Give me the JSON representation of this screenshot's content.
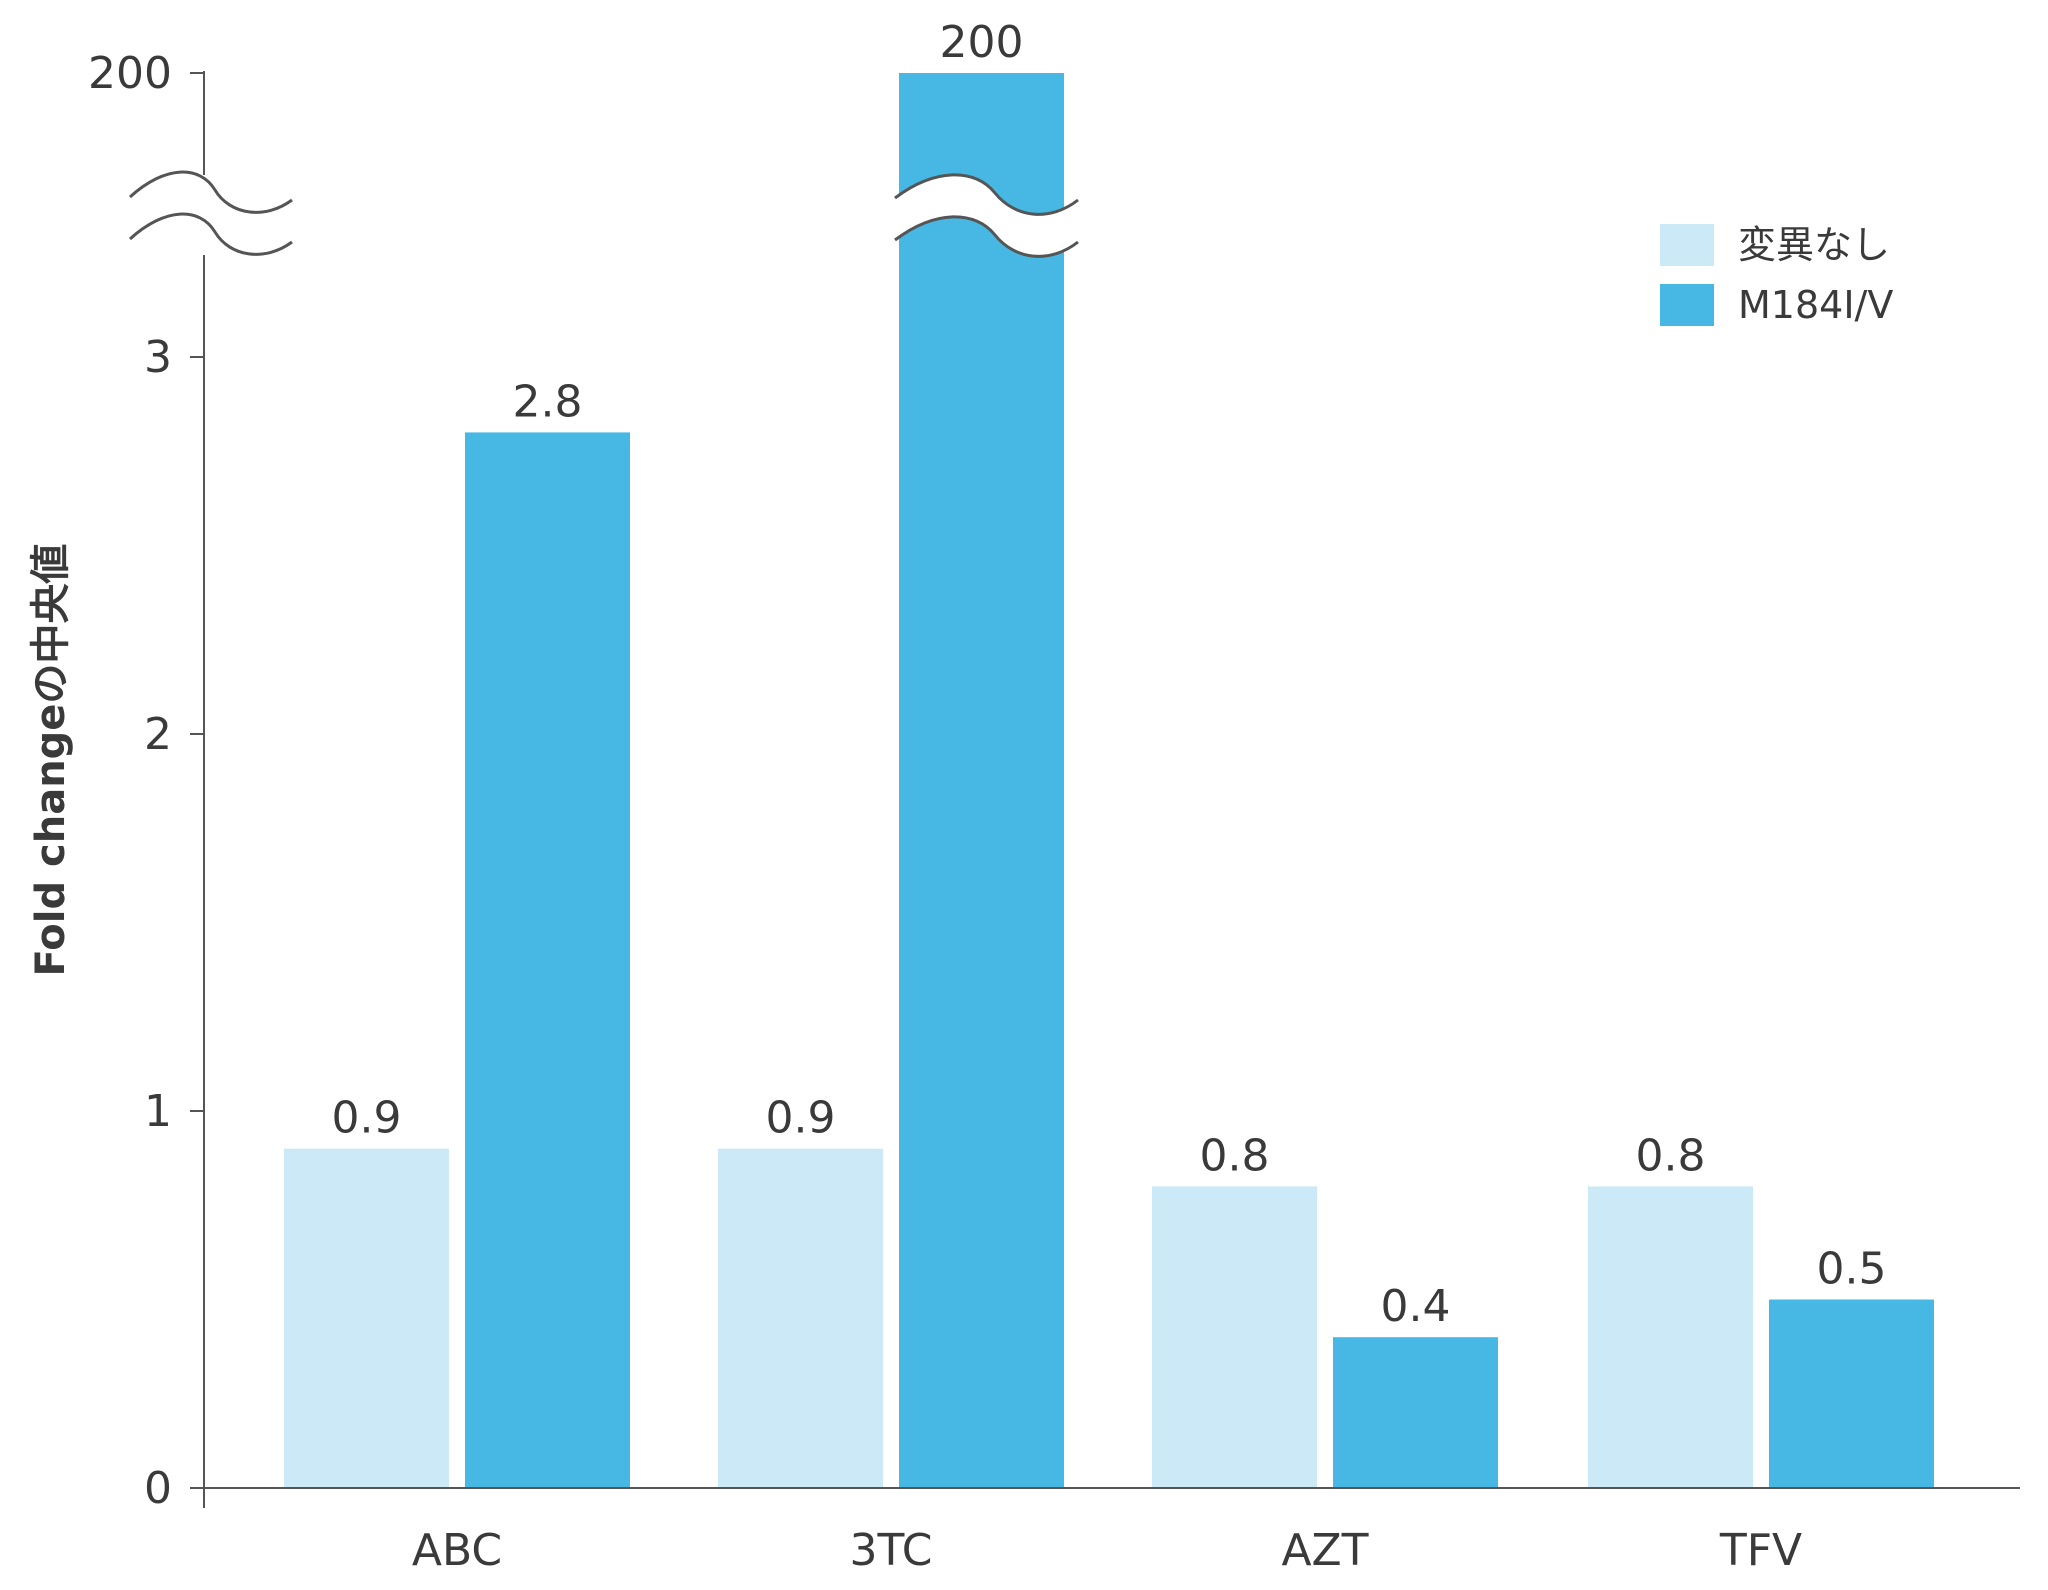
{
  "chart_data": {
    "type": "bar",
    "title": "",
    "xlabel": "",
    "ylabel": "Fold changeの中央値",
    "categories": [
      "ABC",
      "3TC",
      "AZT",
      "TFV"
    ],
    "series": [
      {
        "name": "変異なし",
        "values": [
          0.9,
          0.9,
          0.8,
          0.8
        ],
        "color": "#cbe9f6"
      },
      {
        "name": "M184I/V",
        "values": [
          2.8,
          200,
          0.4,
          0.5
        ],
        "color": "#47b8e3"
      }
    ],
    "data_labels": [
      [
        "0.9",
        "0.9",
        "0.8",
        "0.8"
      ],
      [
        "2.8",
        "200",
        "0.4",
        "0.5"
      ]
    ],
    "yticks": [
      {
        "value": 0,
        "label": "0"
      },
      {
        "value": 1,
        "label": "1"
      },
      {
        "value": 2,
        "label": "2"
      },
      {
        "value": 3,
        "label": "3"
      },
      {
        "value": 200,
        "label": "200"
      }
    ],
    "ylim": [
      0,
      3
    ],
    "axis_break": {
      "from": 3,
      "to": 200
    },
    "legend_position": "top-right",
    "grid": false
  }
}
